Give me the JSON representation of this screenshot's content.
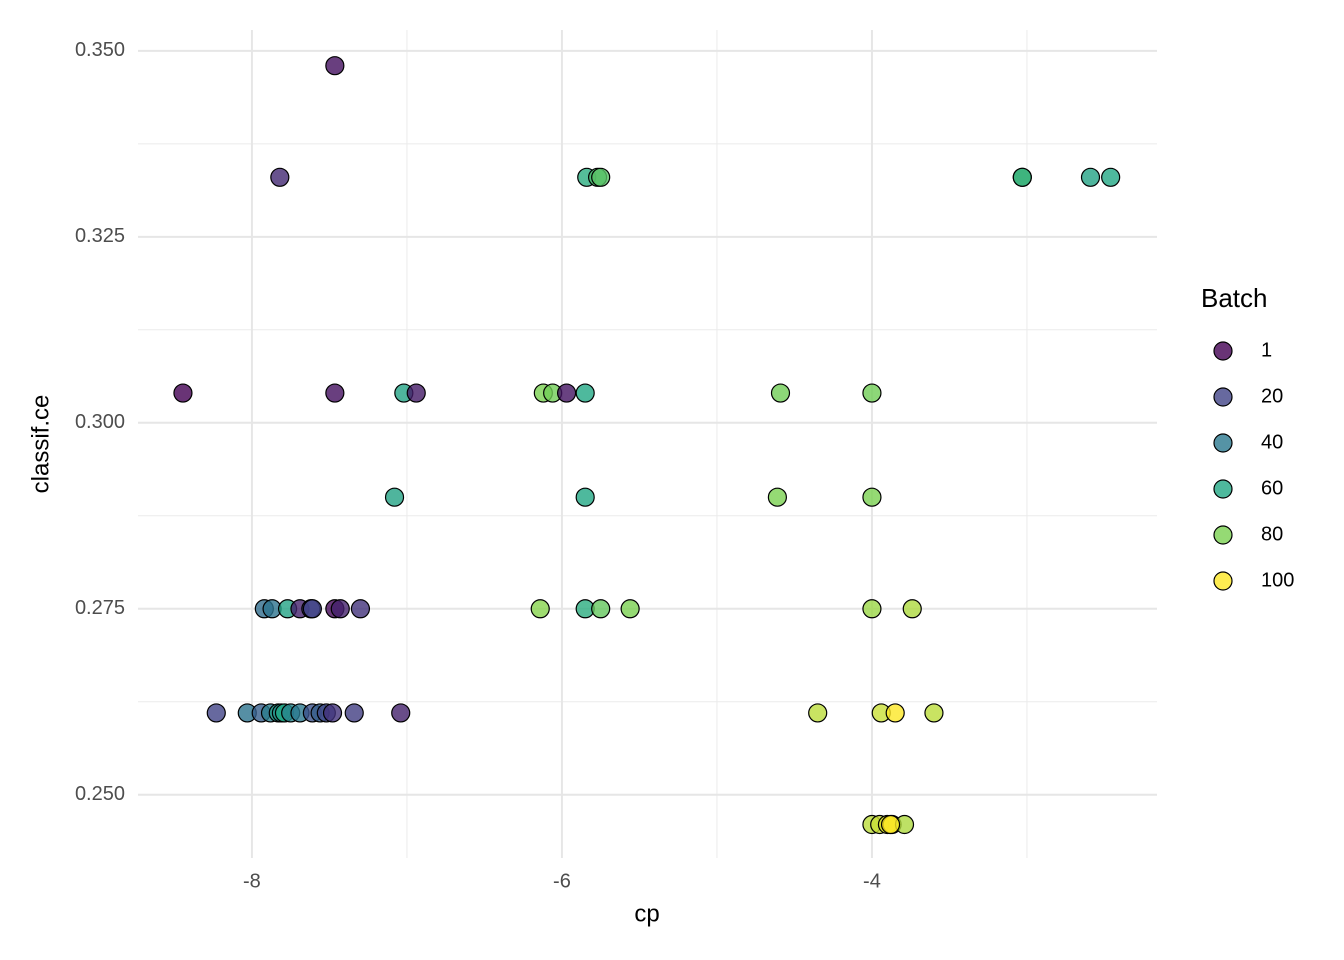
{
  "chart_data": {
    "type": "scatter",
    "x_label": "cp",
    "y_label": "classif.ce",
    "xlim": [
      -8.735,
      -2.161
    ],
    "ylim": [
      0.2415,
      0.3528
    ],
    "xticks": [
      -8,
      -6,
      -4
    ],
    "x_minor_ticks": [
      -7,
      -5,
      -3
    ],
    "yticks": [
      {
        "value": 0.25,
        "label": "0.250"
      },
      {
        "value": 0.275,
        "label": "0.275"
      },
      {
        "value": 0.3,
        "label": "0.300"
      },
      {
        "value": 0.325,
        "label": "0.325"
      },
      {
        "value": 0.35,
        "label": "0.350"
      }
    ],
    "y_minor_ticks": [
      0.2625,
      0.2875,
      0.3125,
      0.3375
    ],
    "grid": true,
    "legend": {
      "title": "Batch",
      "position": "right",
      "breaks": [
        1,
        20,
        40,
        60,
        80,
        100
      ],
      "colors": [
        "#440154",
        "#414487",
        "#2a788e",
        "#22a884",
        "#7ad151",
        "#fde725"
      ]
    },
    "x": [
      -7.465,
      -7.82,
      -5.84,
      -5.77,
      -5.75,
      -3.03,
      -3.03,
      -2.59,
      -2.46,
      -8.445,
      -7.465,
      -7.02,
      -6.94,
      -6.12,
      -6.06,
      -5.97,
      -5.85,
      -4.59,
      -4.0,
      -7.08,
      -5.85,
      -4.61,
      -4.0,
      -7.92,
      -7.87,
      -7.77,
      -7.69,
      -7.62,
      -7.61,
      -7.465,
      -7.43,
      -7.3,
      -6.14,
      -5.85,
      -5.75,
      -5.56,
      -4.0,
      -3.74,
      -8.23,
      -8.03,
      -7.94,
      -7.88,
      -7.83,
      -7.81,
      -7.79,
      -7.75,
      -7.69,
      -7.61,
      -7.56,
      -7.52,
      -7.48,
      -7.34,
      -7.04,
      -4.35,
      -3.94,
      -3.85,
      -3.6,
      -4.0,
      -3.95,
      -3.9,
      -3.87,
      -3.79,
      -3.88
    ],
    "y": [
      0.348,
      0.333,
      0.333,
      0.333,
      0.333,
      0.333,
      0.333,
      0.333,
      0.333,
      0.304,
      0.304,
      0.304,
      0.304,
      0.304,
      0.304,
      0.304,
      0.304,
      0.304,
      0.304,
      0.29,
      0.29,
      0.29,
      0.29,
      0.275,
      0.275,
      0.275,
      0.275,
      0.275,
      0.275,
      0.275,
      0.275,
      0.275,
      0.275,
      0.275,
      0.275,
      0.275,
      0.275,
      0.275,
      0.261,
      0.261,
      0.261,
      0.261,
      0.261,
      0.261,
      0.261,
      0.261,
      0.261,
      0.261,
      0.261,
      0.261,
      0.261,
      0.261,
      0.261,
      0.261,
      0.261,
      0.261,
      0.261,
      0.246,
      0.246,
      0.246,
      0.246,
      0.246,
      0.246
    ],
    "batch": [
      5,
      12,
      62,
      70,
      72,
      62,
      65,
      58,
      60,
      1,
      5,
      58,
      8,
      80,
      78,
      6,
      60,
      78,
      78,
      58,
      60,
      80,
      80,
      35,
      38,
      58,
      10,
      18,
      20,
      3,
      10,
      15,
      82,
      62,
      75,
      80,
      85,
      88,
      20,
      38,
      30,
      42,
      55,
      50,
      60,
      45,
      40,
      25,
      30,
      22,
      15,
      18,
      10,
      90,
      92,
      100,
      90,
      90,
      92,
      95,
      97,
      88,
      100
    ]
  }
}
